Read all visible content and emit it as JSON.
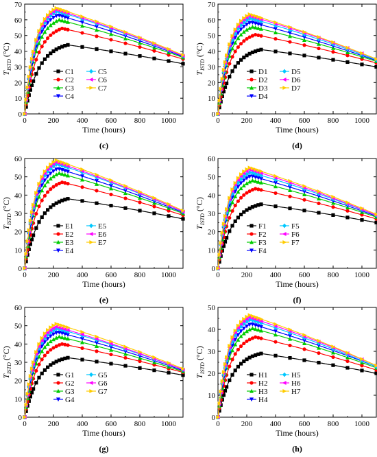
{
  "figure": {
    "background": "#ffffff",
    "series_colors": [
      "#000000",
      "#ff0000",
      "#00cc00",
      "#0000ff",
      "#00c8ff",
      "#ff00ff",
      "#ffcc00"
    ],
    "marker_shapes": [
      "square",
      "circle",
      "triangle-up",
      "triangle-down",
      "diamond",
      "triangle-left",
      "triangle-right"
    ]
  },
  "chart_data": [
    {
      "type": "line",
      "panel_label": "(c)",
      "ylabel_main": "T",
      "ylabel_sub": "ISTD",
      "ylabel_unit": " (°C)",
      "xlabel": "Time (hours)",
      "xlim": [
        0,
        1100
      ],
      "ylim": [
        0,
        70
      ],
      "xticks": [
        0,
        200,
        400,
        600,
        800,
        1000
      ],
      "yticks": [
        0,
        10,
        20,
        30,
        40,
        50,
        60,
        70
      ],
      "peak_time": [
        300,
        260,
        240,
        230,
        225,
        220,
        220
      ],
      "series": [
        {
          "name": "C1",
          "peak": 44,
          "end": 32
        },
        {
          "name": "C2",
          "peak": 54.5,
          "end": 35
        },
        {
          "name": "C3",
          "peak": 60,
          "end": 36
        },
        {
          "name": "C4",
          "peak": 63,
          "end": 36.5
        },
        {
          "name": "C5",
          "peak": 65.5,
          "end": 37
        },
        {
          "name": "C6",
          "peak": 66.5,
          "end": 37
        },
        {
          "name": "C7",
          "peak": 67.5,
          "end": 37.5
        }
      ]
    },
    {
      "type": "line",
      "panel_label": "(d)",
      "ylabel_main": "T",
      "ylabel_sub": "ISTD",
      "ylabel_unit": " (°C)",
      "xlabel": "Time (hours)",
      "xlim": [
        0,
        1100
      ],
      "ylim": [
        0,
        70
      ],
      "xticks": [
        0,
        200,
        400,
        600,
        800,
        1000
      ],
      "yticks": [
        0,
        10,
        20,
        30,
        40,
        50,
        60,
        70
      ],
      "peak_time": [
        300,
        260,
        240,
        230,
        225,
        220,
        220
      ],
      "series": [
        {
          "name": "D1",
          "peak": 41,
          "end": 30
        },
        {
          "name": "D2",
          "peak": 50.5,
          "end": 32.5
        },
        {
          "name": "D3",
          "peak": 55.5,
          "end": 33.5
        },
        {
          "name": "D4",
          "peak": 58.5,
          "end": 34
        },
        {
          "name": "D5",
          "peak": 61,
          "end": 34.5
        },
        {
          "name": "D6",
          "peak": 62.5,
          "end": 35
        },
        {
          "name": "D7",
          "peak": 63.5,
          "end": 35
        }
      ]
    },
    {
      "type": "line",
      "panel_label": "(e)",
      "ylabel_main": "T",
      "ylabel_sub": "ISTD",
      "ylabel_unit": " (°C)",
      "xlabel": "Time (hours)",
      "xlim": [
        0,
        1100
      ],
      "ylim": [
        0,
        60
      ],
      "xticks": [
        0,
        200,
        400,
        600,
        800,
        1000
      ],
      "yticks": [
        0,
        10,
        20,
        30,
        40,
        50,
        60
      ],
      "peak_time": [
        300,
        260,
        240,
        230,
        225,
        220,
        220
      ],
      "series": [
        {
          "name": "E1",
          "peak": 38,
          "end": 27
        },
        {
          "name": "E2",
          "peak": 47,
          "end": 29
        },
        {
          "name": "E3",
          "peak": 52,
          "end": 30
        },
        {
          "name": "E4",
          "peak": 54.5,
          "end": 30.5
        },
        {
          "name": "E5",
          "peak": 57,
          "end": 31
        },
        {
          "name": "E6",
          "peak": 58,
          "end": 31
        },
        {
          "name": "E7",
          "peak": 59,
          "end": 31.5
        }
      ]
    },
    {
      "type": "line",
      "panel_label": "(f)",
      "ylabel_main": "T",
      "ylabel_sub": "ISTD",
      "ylabel_unit": " (°C)",
      "xlabel": "Time (hours)",
      "xlim": [
        0,
        1100
      ],
      "ylim": [
        0,
        60
      ],
      "xticks": [
        0,
        200,
        400,
        600,
        800,
        1000
      ],
      "yticks": [
        0,
        10,
        20,
        30,
        40,
        50,
        60
      ],
      "peak_time": [
        300,
        260,
        240,
        230,
        225,
        220,
        220
      ],
      "series": [
        {
          "name": "F1",
          "peak": 35,
          "end": 25
        },
        {
          "name": "F2",
          "peak": 43.5,
          "end": 27
        },
        {
          "name": "F3",
          "peak": 48,
          "end": 28
        },
        {
          "name": "F4",
          "peak": 50.5,
          "end": 28.5
        },
        {
          "name": "F5",
          "peak": 52.5,
          "end": 29
        },
        {
          "name": "F6",
          "peak": 54,
          "end": 29
        },
        {
          "name": "F7",
          "peak": 55,
          "end": 29.5
        }
      ]
    },
    {
      "type": "line",
      "panel_label": "(g)",
      "ylabel_main": "T",
      "ylabel_sub": "ISTD",
      "ylabel_unit": " (°C)",
      "xlabel": "Time (hours)",
      "xlim": [
        0,
        1100
      ],
      "ylim": [
        0,
        60
      ],
      "xticks": [
        0,
        200,
        400,
        600,
        800,
        1000
      ],
      "yticks": [
        0,
        10,
        20,
        30,
        40,
        50,
        60
      ],
      "peak_time": [
        300,
        260,
        240,
        230,
        225,
        220,
        220
      ],
      "series": [
        {
          "name": "G1",
          "peak": 32.5,
          "end": 23
        },
        {
          "name": "G2",
          "peak": 40,
          "end": 24.5
        },
        {
          "name": "G3",
          "peak": 44,
          "end": 25
        },
        {
          "name": "G4",
          "peak": 46.5,
          "end": 25.5
        },
        {
          "name": "G5",
          "peak": 48.5,
          "end": 26
        },
        {
          "name": "G6",
          "peak": 49.5,
          "end": 26
        },
        {
          "name": "G7",
          "peak": 51,
          "end": 26.5
        }
      ]
    },
    {
      "type": "line",
      "panel_label": "(h)",
      "ylabel_main": "T",
      "ylabel_sub": "ISTD",
      "ylabel_unit": " (°C)",
      "xlabel": "Time (hours)",
      "xlim": [
        0,
        1100
      ],
      "ylim": [
        0,
        50
      ],
      "xticks": [
        0,
        200,
        400,
        600,
        800,
        1000
      ],
      "yticks": [
        0,
        10,
        20,
        30,
        40,
        50
      ],
      "peak_time": [
        300,
        260,
        240,
        230,
        225,
        220,
        220
      ],
      "series": [
        {
          "name": "H1",
          "peak": 29,
          "end": 20
        },
        {
          "name": "H2",
          "peak": 36.5,
          "end": 21.5
        },
        {
          "name": "H3",
          "peak": 40.5,
          "end": 22.5
        },
        {
          "name": "H4",
          "peak": 42.5,
          "end": 23
        },
        {
          "name": "H5",
          "peak": 44.5,
          "end": 23
        },
        {
          "name": "H6",
          "peak": 45.5,
          "end": 23.5
        },
        {
          "name": "H7",
          "peak": 46.5,
          "end": 23.5
        }
      ]
    }
  ]
}
